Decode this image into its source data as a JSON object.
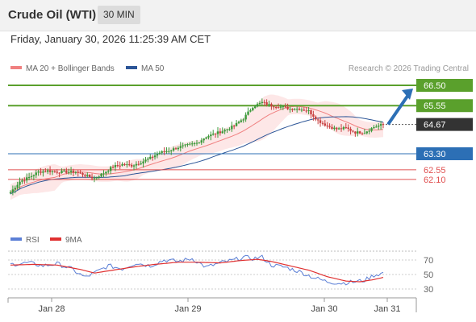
{
  "header": {
    "title": "Crude Oil (WTI)",
    "timeframe": "30 MIN"
  },
  "datetime": "Friday, January 30, 2026 11:25:39 AM CET",
  "legend": {
    "bb": "MA 20 + Bollinger Bands",
    "ma50": "MA 50",
    "rsi": "RSI",
    "rsi_ma": "9MA"
  },
  "credit": "Research © 2026 Trading Central",
  "colors": {
    "bb": "#f08080",
    "ma50": "#2c5597",
    "rsi": "#5b7fd6",
    "rsi_ma": "#e03030",
    "resistance": "#5aa02c",
    "pivot": "#2c6fb5",
    "support": "#e05050",
    "up_candle": "#3a9a3a",
    "down_candle": "#c84040"
  },
  "chart_data": [
    {
      "type": "candlestick",
      "x_ticks": [
        "Jan 28",
        "Jan 29",
        "Jan 30",
        "Jan 31"
      ],
      "levels": [
        {
          "label": "66.50",
          "value": 66.5,
          "kind": "resistance"
        },
        {
          "label": "65.55",
          "value": 65.55,
          "kind": "resistance"
        },
        {
          "label": "64.67",
          "value": 64.67,
          "kind": "last"
        },
        {
          "label": "63.30",
          "value": 63.3,
          "kind": "pivot"
        },
        {
          "label": "62.55",
          "value": 62.55,
          "kind": "support"
        },
        {
          "label": "62.10",
          "value": 62.1,
          "kind": "support"
        }
      ],
      "close_anchors": [
        [
          0,
          61.5
        ],
        [
          4,
          62.0
        ],
        [
          8,
          62.2
        ],
        [
          12,
          62.45
        ],
        [
          16,
          62.5
        ],
        [
          20,
          62.45
        ],
        [
          24,
          62.45
        ],
        [
          28,
          62.45
        ],
        [
          32,
          62.3
        ],
        [
          36,
          62.15
        ],
        [
          40,
          62.4
        ],
        [
          44,
          62.7
        ],
        [
          48,
          62.8
        ],
        [
          52,
          62.75
        ],
        [
          56,
          62.9
        ],
        [
          60,
          63.1
        ],
        [
          64,
          63.35
        ],
        [
          68,
          63.45
        ],
        [
          72,
          63.6
        ],
        [
          76,
          63.7
        ],
        [
          80,
          63.8
        ],
        [
          84,
          64.1
        ],
        [
          88,
          64.25
        ],
        [
          92,
          64.4
        ],
        [
          96,
          64.6
        ],
        [
          100,
          64.95
        ],
        [
          104,
          65.5
        ],
        [
          108,
          65.7
        ],
        [
          112,
          65.55
        ],
        [
          116,
          65.5
        ],
        [
          120,
          65.4
        ],
        [
          124,
          65.4
        ],
        [
          128,
          65.3
        ],
        [
          132,
          64.85
        ],
        [
          136,
          64.6
        ],
        [
          140,
          64.45
        ],
        [
          144,
          64.5
        ],
        [
          148,
          64.3
        ],
        [
          152,
          64.3
        ],
        [
          156,
          64.55
        ],
        [
          160,
          64.67
        ]
      ],
      "forecast_target": 66.5,
      "ma20_bb": "overlay",
      "ma50": "overlay"
    },
    {
      "type": "line",
      "title": "RSI",
      "yticks": [
        70,
        50,
        30
      ],
      "series": [
        {
          "name": "RSI",
          "anchors": [
            [
              0,
              64
            ],
            [
              8,
              66
            ],
            [
              14,
              62
            ],
            [
              20,
              65
            ],
            [
              26,
              58
            ],
            [
              32,
              46
            ],
            [
              36,
              52
            ],
            [
              42,
              62
            ],
            [
              48,
              58
            ],
            [
              54,
              66
            ],
            [
              60,
              62
            ],
            [
              66,
              70
            ],
            [
              72,
              68
            ],
            [
              78,
              72
            ],
            [
              84,
              60
            ],
            [
              90,
              66
            ],
            [
              96,
              70
            ],
            [
              100,
              74
            ],
            [
              104,
              72
            ],
            [
              108,
              74
            ],
            [
              112,
              63
            ],
            [
              118,
              60
            ],
            [
              124,
              54
            ],
            [
              130,
              46
            ],
            [
              136,
              40
            ],
            [
              142,
              38
            ],
            [
              148,
              40
            ],
            [
              152,
              42
            ],
            [
              156,
              49
            ],
            [
              160,
              52
            ]
          ]
        },
        {
          "name": "9MA",
          "anchors": [
            [
              0,
              63
            ],
            [
              10,
              64
            ],
            [
              20,
              63
            ],
            [
              30,
              57
            ],
            [
              36,
              52
            ],
            [
              44,
              56
            ],
            [
              54,
              61
            ],
            [
              62,
              64
            ],
            [
              72,
              67
            ],
            [
              80,
              67
            ],
            [
              90,
              66
            ],
            [
              98,
              69
            ],
            [
              106,
              71
            ],
            [
              112,
              68
            ],
            [
              120,
              62
            ],
            [
              128,
              56
            ],
            [
              136,
              47
            ],
            [
              144,
              41
            ],
            [
              150,
              40
            ],
            [
              156,
              43
            ],
            [
              160,
              46
            ]
          ]
        }
      ]
    }
  ]
}
